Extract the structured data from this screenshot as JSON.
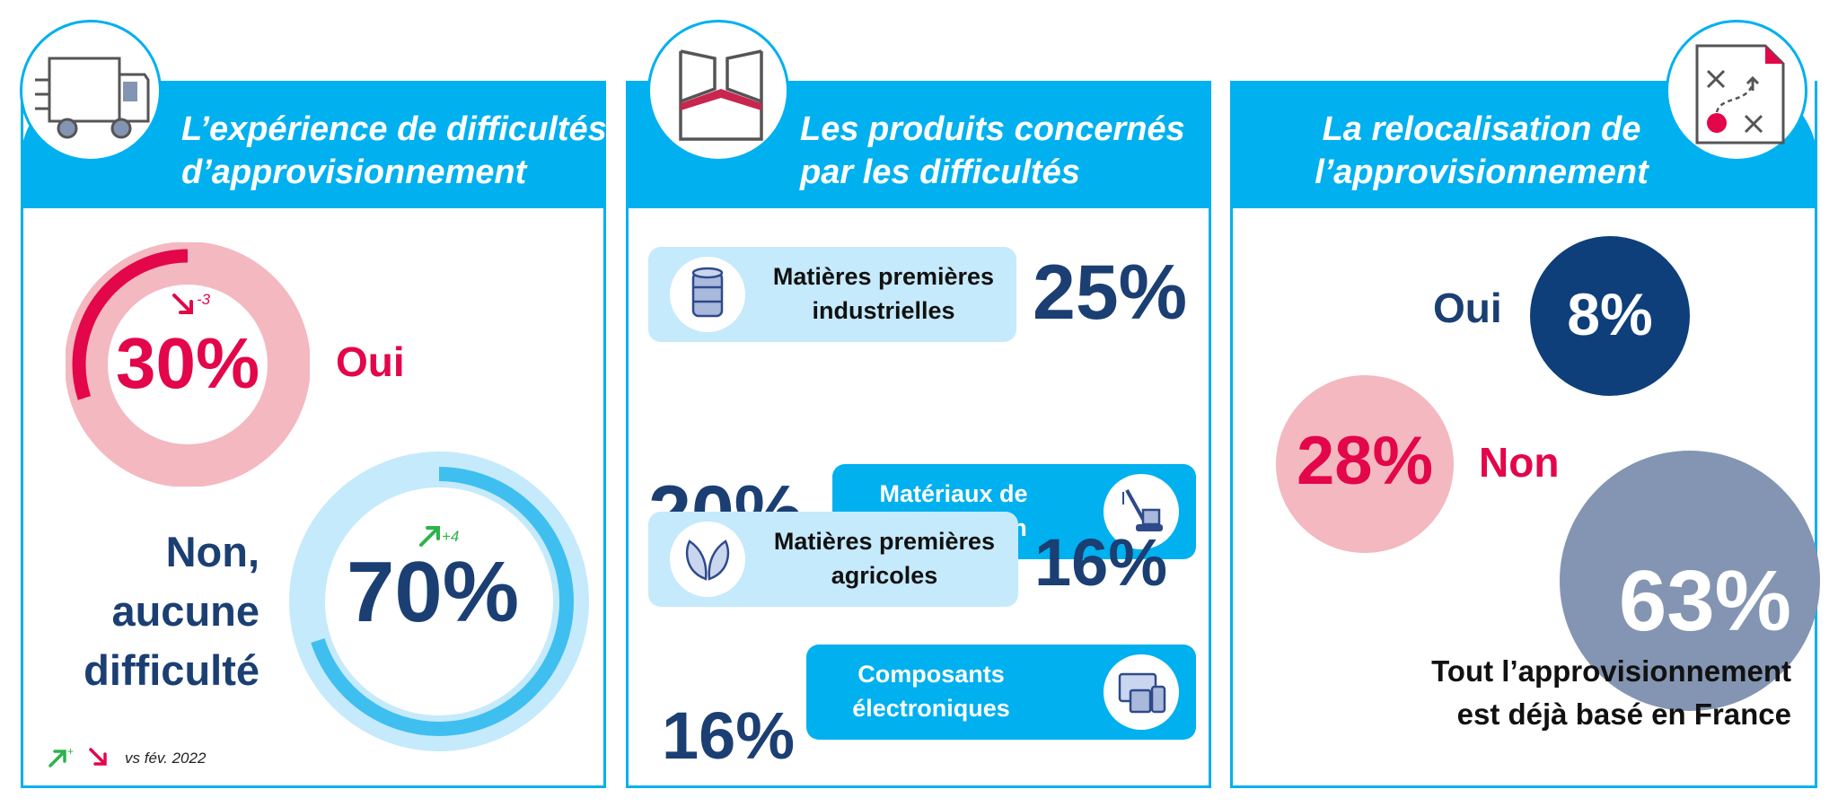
{
  "panels": {
    "experience": {
      "title_line1": "L’expérience de difficultés",
      "title_line2": "d’approvisionnement",
      "icon": "delivery-truck-icon",
      "oui_value": "30%",
      "oui_label": "Oui",
      "oui_change": "-3",
      "non_value": "70%",
      "non_label_line1": "Non,",
      "non_label_line2": "aucune",
      "non_label_line3": "difficulté",
      "non_change": "+4",
      "footnote_up": "+",
      "footnote": "vs fév. 2022"
    },
    "products": {
      "title_line1": "Les produits concernés",
      "title_line2": "par les difficultés",
      "icon": "open-box-icon",
      "items": [
        {
          "label_line1": "Matières premières",
          "label_line2": "industrielles",
          "value": "25%",
          "icon": "barrel-icon"
        },
        {
          "label_line1": "Matériaux de",
          "label_line2": "construction",
          "value": "20%",
          "icon": "crane-icon"
        },
        {
          "label_line1": "Matières premières",
          "label_line2": "agricoles",
          "value": "16%",
          "icon": "leaves-icon"
        },
        {
          "label_line1": "Composants",
          "label_line2": "électroniques",
          "value": "16%",
          "icon": "devices-icon"
        }
      ]
    },
    "relocation": {
      "title_line1": "La relocalisation de",
      "title_line2": "l’approvisionnement",
      "icon": "strategy-plan-icon",
      "oui_value": "8%",
      "oui_label": "Oui",
      "non_value": "28%",
      "non_label": "Non",
      "france_value": "63%",
      "france_label_line1": "Tout l’approvisionnement",
      "france_label_line2": "est déjà basé en France"
    }
  },
  "colors": {
    "header_blue": "#00b0ef",
    "navy": "#1b3f73",
    "crimson": "#e3064a",
    "pink_light": "#f4b8c0",
    "blue_light": "#c5eafb",
    "slate": "#8395b2",
    "green": "#2db34a"
  },
  "chart_data": [
    {
      "type": "pie",
      "categories": [
        "Oui",
        "Non, aucune difficulté"
      ],
      "values": [
        30,
        70
      ],
      "changes_vs_feb_2022": [
        -3,
        4
      ]
    },
    {
      "type": "bar",
      "categories": [
        "Matières premières industrielles",
        "Matériaux de construction",
        "Matières premières agricoles",
        "Composants électroniques"
      ],
      "values": [
        25,
        20,
        16,
        16
      ]
    },
    {
      "type": "bubble",
      "categories": [
        "Oui",
        "Non",
        "Tout l’approvisionnement est déjà basé en France"
      ],
      "values": [
        8,
        28,
        63
      ]
    }
  ]
}
